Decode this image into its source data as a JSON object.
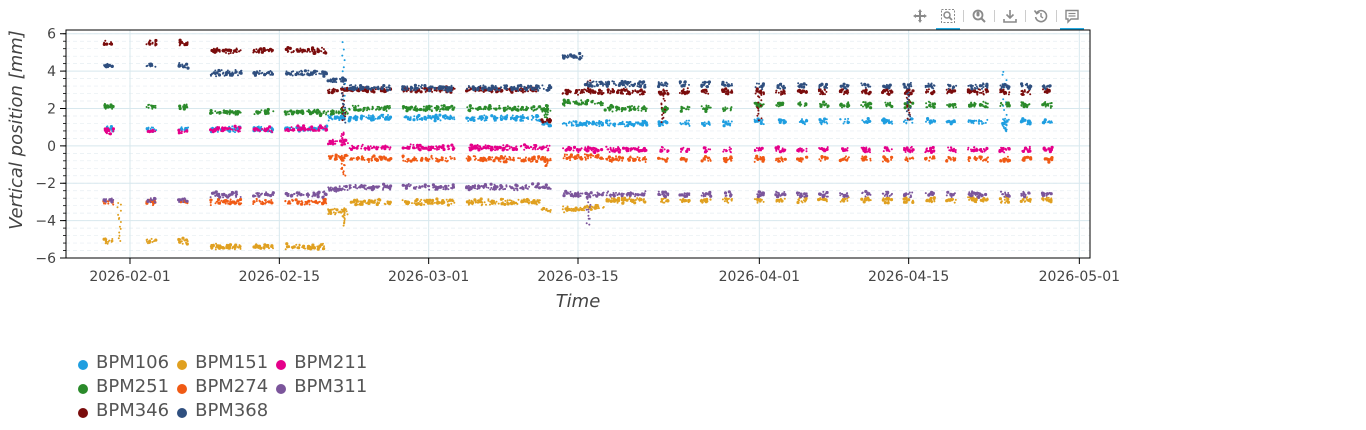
{
  "toolbar": {
    "tools": [
      {
        "id": "pan",
        "icon": "pan-icon",
        "active": false
      },
      {
        "id": "box-zoom",
        "icon": "box-zoom-icon",
        "active": true
      },
      {
        "id": "wheel-zoom",
        "icon": "wheel-zoom-icon",
        "active": false
      },
      {
        "id": "save",
        "icon": "save-icon",
        "active": false
      },
      {
        "id": "reset",
        "icon": "reset-icon",
        "active": false
      },
      {
        "id": "hover",
        "icon": "hover-icon",
        "active": true
      }
    ]
  },
  "chart_data": {
    "type": "scatter",
    "xlabel": "Time",
    "ylabel": "Vertical position [mm]",
    "xlim": [
      "2026-01-26",
      "2026-05-02"
    ],
    "ylim": [
      -6,
      6.2
    ],
    "x_ticks": [
      "2026-02-01",
      "2026-02-15",
      "2026-03-01",
      "2026-03-15",
      "2026-04-01",
      "2026-04-15",
      "2026-05-01"
    ],
    "y_ticks": [
      -6,
      -4,
      -2,
      0,
      2,
      4,
      6
    ],
    "grid": true,
    "legend_placement": "bottom-left",
    "measurement_dates": [
      "2026-01-30",
      "2026-02-03",
      "2026-02-06",
      "2026-02-09",
      "2026-02-10",
      "2026-02-11",
      "2026-02-13",
      "2026-02-14",
      "2026-02-16",
      "2026-02-17",
      "2026-02-18",
      "2026-02-19",
      "2026-02-20",
      "2026-02-21",
      "2026-02-22",
      "2026-02-23",
      "2026-02-24",
      "2026-02-25",
      "2026-02-27",
      "2026-02-28",
      "2026-03-01",
      "2026-03-02",
      "2026-03-03",
      "2026-03-05",
      "2026-03-06",
      "2026-03-07",
      "2026-03-08",
      "2026-03-09",
      "2026-03-10",
      "2026-03-11",
      "2026-03-12",
      "2026-03-14",
      "2026-03-15",
      "2026-03-16",
      "2026-03-17",
      "2026-03-18",
      "2026-03-19",
      "2026-03-20",
      "2026-03-21",
      "2026-03-23",
      "2026-03-25",
      "2026-03-27",
      "2026-03-29",
      "2026-04-01",
      "2026-04-03",
      "2026-04-05",
      "2026-04-07",
      "2026-04-09",
      "2026-04-11",
      "2026-04-13",
      "2026-04-15",
      "2026-04-17",
      "2026-04-19",
      "2026-04-21",
      "2026-04-22",
      "2026-04-24",
      "2026-04-26",
      "2026-04-28"
    ],
    "series": [
      {
        "name": "BPM106",
        "color": "#1f9ee0",
        "level_periods": [
          [
            "2026-01-26",
            0.9
          ],
          [
            "2026-02-20",
            1.5
          ],
          [
            "2026-03-12",
            1.2
          ],
          [
            "2026-04-01",
            1.3
          ],
          [
            "2026-05-02",
            1.3
          ]
        ],
        "bursts": [
          [
            "2026-02-21",
            5.5
          ],
          [
            "2026-04-24",
            4.0
          ],
          [
            "2026-04-24",
            0.8
          ]
        ]
      },
      {
        "name": "BPM151",
        "color": "#e0a020",
        "level_periods": [
          [
            "2026-01-26",
            -5.1
          ],
          [
            "2026-02-09",
            -5.4
          ],
          [
            "2026-02-20",
            -3.5
          ],
          [
            "2026-02-22",
            -3.0
          ],
          [
            "2026-03-12",
            -3.4
          ],
          [
            "2026-03-16",
            -3.3
          ],
          [
            "2026-03-18",
            -2.9
          ],
          [
            "2026-05-02",
            -3.0
          ]
        ],
        "bursts": [
          [
            "2026-01-31",
            -3.0
          ],
          [
            "2026-02-21",
            -4.2
          ]
        ]
      },
      {
        "name": "BPM211",
        "color": "#e5008a",
        "level_periods": [
          [
            "2026-01-26",
            0.8
          ],
          [
            "2026-02-09",
            0.9
          ],
          [
            "2026-02-20",
            0.2
          ],
          [
            "2026-02-22",
            -0.1
          ],
          [
            "2026-03-14",
            -0.2
          ],
          [
            "2026-05-02",
            -0.2
          ]
        ],
        "bursts": [
          [
            "2026-02-21",
            0.7
          ]
        ]
      },
      {
        "name": "BPM251",
        "color": "#2a8a2a",
        "level_periods": [
          [
            "2026-01-26",
            2.1
          ],
          [
            "2026-02-09",
            1.8
          ],
          [
            "2026-02-20",
            1.8
          ],
          [
            "2026-02-22",
            2.0
          ],
          [
            "2026-03-14",
            2.3
          ],
          [
            "2026-03-18",
            2.0
          ],
          [
            "2026-04-01",
            2.2
          ],
          [
            "2026-05-02",
            2.1
          ]
        ],
        "bursts": [
          [
            "2026-03-12",
            1.5
          ]
        ]
      },
      {
        "name": "BPM274",
        "color": "#f05a14",
        "level_periods": [
          [
            "2026-01-26",
            -3.0
          ],
          [
            "2026-02-09",
            -3.0
          ],
          [
            "2026-02-20",
            -0.6
          ],
          [
            "2026-02-22",
            -0.7
          ],
          [
            "2026-03-14",
            -0.6
          ],
          [
            "2026-03-18",
            -0.7
          ],
          [
            "2026-04-01",
            -0.7
          ],
          [
            "2026-05-02",
            -0.8
          ]
        ],
        "bursts": [
          [
            "2026-02-21",
            -1.6
          ],
          [
            "2026-03-12",
            -1.1
          ]
        ]
      },
      {
        "name": "BPM311",
        "color": "#7b559b",
        "level_periods": [
          [
            "2026-01-26",
            -2.9
          ],
          [
            "2026-02-09",
            -2.6
          ],
          [
            "2026-02-20",
            -2.3
          ],
          [
            "2026-02-22",
            -2.2
          ],
          [
            "2026-03-14",
            -2.6
          ],
          [
            "2026-03-18",
            -2.6
          ],
          [
            "2026-04-01",
            -2.6
          ],
          [
            "2026-05-02",
            -2.5
          ]
        ],
        "bursts": [
          [
            "2026-03-16",
            -4.2
          ]
        ]
      },
      {
        "name": "BPM346",
        "color": "#7a0c0c",
        "level_periods": [
          [
            "2026-01-26",
            5.5
          ],
          [
            "2026-02-09",
            5.1
          ],
          [
            "2026-02-20",
            3.0
          ],
          [
            "2026-02-22",
            3.0
          ],
          [
            "2026-03-12",
            1.4
          ],
          [
            "2026-03-14",
            2.9
          ],
          [
            "2026-05-02",
            3.0
          ]
        ],
        "bursts": [
          [
            "2026-02-21",
            1.4
          ],
          [
            "2026-03-16",
            3.5
          ],
          [
            "2026-03-23",
            1.3
          ],
          [
            "2026-04-01",
            1.4
          ],
          [
            "2026-04-15",
            1.4
          ]
        ]
      },
      {
        "name": "BPM368",
        "color": "#2f4f7f",
        "level_periods": [
          [
            "2026-01-26",
            4.3
          ],
          [
            "2026-02-09",
            3.9
          ],
          [
            "2026-02-20",
            3.5
          ],
          [
            "2026-02-22",
            3.1
          ],
          [
            "2026-03-12",
            3.1
          ],
          [
            "2026-03-14",
            4.8
          ],
          [
            "2026-03-16",
            3.3
          ],
          [
            "2026-04-01",
            3.2
          ],
          [
            "2026-05-02",
            3.2
          ]
        ],
        "bursts": [
          [
            "2026-02-21",
            1.3
          ],
          [
            "2026-04-15",
            1.4
          ]
        ]
      }
    ]
  }
}
